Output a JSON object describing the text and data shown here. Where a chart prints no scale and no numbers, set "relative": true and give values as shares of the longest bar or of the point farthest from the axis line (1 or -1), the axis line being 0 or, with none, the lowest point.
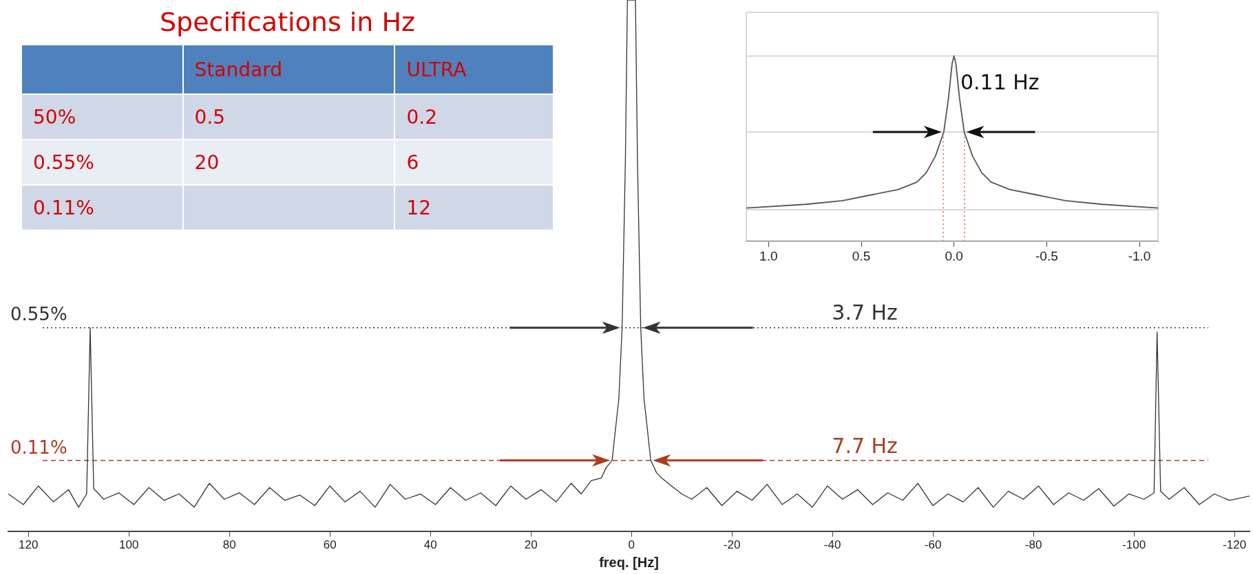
{
  "chart_data": [
    {
      "type": "other",
      "title": "Specifications in Hz",
      "categories": [
        "Standard",
        "ULTRA"
      ],
      "y_categories": [
        "50%",
        "0.55%",
        "0.11%"
      ],
      "cell_labels": [
        [
          "0.5",
          "0.2"
        ],
        [
          "20",
          "6"
        ],
        [
          null,
          "12"
        ]
      ]
    },
    {
      "type": "line",
      "relative": true,
      "xlim": [
        1.12,
        -1.1
      ],
      "xticks": [
        {
          "value": 1,
          "label": "1.0"
        },
        0.5,
        {
          "value": 0,
          "label": "0.0"
        },
        -0.5,
        {
          "value": -1,
          "label": "-1.0"
        }
      ],
      "series": [
        {
          "color": "#555555",
          "x": [
            1.12,
            0.8,
            0.6,
            0.45,
            0.3,
            0.2,
            0.15,
            0.1,
            0.055,
            0.03,
            0.01,
            0,
            -0.01,
            -0.03,
            -0.055,
            -0.1,
            -0.15,
            -0.2,
            -0.3,
            -0.45,
            -0.6,
            -0.8,
            -1.1
          ],
          "values": [
            0.18,
            0.2,
            0.22,
            0.25,
            0.28,
            0.32,
            0.37,
            0.46,
            0.59,
            0.77,
            0.96,
            1,
            0.96,
            0.77,
            0.59,
            0.46,
            0.37,
            0.32,
            0.28,
            0.25,
            0.22,
            0.2,
            0.18
          ]
        }
      ],
      "ref_lines": [
        {
          "axis": "y",
          "value": 1,
          "color": "#cccccc"
        },
        {
          "axis": "y",
          "value": 0.59,
          "color": "#cccccc"
        },
        {
          "axis": "y",
          "value": 0.17,
          "color": "#cccccc"
        },
        {
          "axis": "x",
          "value": 0.057,
          "color": "#d9603b",
          "line_style": "dotted"
        },
        {
          "axis": "x",
          "value": -0.057,
          "color": "#d9603b",
          "line_style": "dotted"
        }
      ],
      "annotations": [
        "0.11 Hz"
      ]
    },
    {
      "type": "line",
      "relative": true,
      "xlim": [
        124,
        -123
      ],
      "xticks": [
        120,
        100,
        80,
        60,
        40,
        20,
        0,
        -20,
        -40,
        -60,
        -80,
        -100,
        -120
      ],
      "xlabel": "freq. [Hz]",
      "series": [
        {
          "color": "#333333",
          "x": [
            124,
            121,
            118,
            115,
            112,
            110,
            108.4,
            107.7,
            107,
            105,
            102,
            99,
            96,
            93,
            90,
            87,
            84,
            81,
            78,
            75,
            72,
            69,
            66,
            63,
            60,
            57,
            54,
            51,
            48,
            45,
            42,
            39,
            36,
            33,
            30,
            27,
            24,
            21,
            18,
            15,
            12,
            10,
            8,
            6,
            5,
            3.85,
            2.5,
            1.85,
            1.2,
            0.8,
            0,
            -0.8,
            -1.2,
            -1.85,
            -2.5,
            -3.85,
            -5,
            -6,
            -8,
            -10,
            -12,
            -15,
            -18,
            -21,
            -24,
            -27,
            -30,
            -33,
            -36,
            -39,
            -42,
            -45,
            -48,
            -51,
            -54,
            -57,
            -60,
            -63,
            -66,
            -69,
            -72,
            -75,
            -78,
            -81,
            -84,
            -87,
            -90,
            -93,
            -96,
            -99,
            -102,
            -104,
            -104.6,
            -105.3,
            -107,
            -110,
            -113,
            -116,
            -119,
            -123
          ],
          "values": [
            0.07,
            0.05,
            0.085,
            0.055,
            0.078,
            0.045,
            0.07,
            0.383,
            0.08,
            0.06,
            0.072,
            0.05,
            0.082,
            0.058,
            0.07,
            0.045,
            0.09,
            0.06,
            0.072,
            0.05,
            0.082,
            0.058,
            0.068,
            0.048,
            0.085,
            0.055,
            0.075,
            0.045,
            0.088,
            0.06,
            0.07,
            0.05,
            0.082,
            0.058,
            0.072,
            0.048,
            0.085,
            0.06,
            0.078,
            0.055,
            0.09,
            0.07,
            0.095,
            0.1,
            0.12,
            0.133,
            0.25,
            0.383,
            0.7,
            1,
            1,
            1,
            0.7,
            0.383,
            0.25,
            0.133,
            0.11,
            0.1,
            0.085,
            0.07,
            0.06,
            0.082,
            0.048,
            0.075,
            0.058,
            0.088,
            0.05,
            0.07,
            0.045,
            0.085,
            0.06,
            0.078,
            0.05,
            0.072,
            0.058,
            0.09,
            0.048,
            0.07,
            0.055,
            0.082,
            0.045,
            0.075,
            0.06,
            0.085,
            0.05,
            0.072,
            0.058,
            0.08,
            0.047,
            0.07,
            0.06,
            0.072,
            0.375,
            0.075,
            0.06,
            0.082,
            0.05,
            0.07,
            0.058,
            0.066
          ]
        }
      ],
      "ref_lines": [
        {
          "axis": "y",
          "value": 0.383,
          "color": "#333333",
          "line_style": "dotted"
        },
        {
          "axis": "y",
          "value": 0.133,
          "color": "#b03a20",
          "line_style": "dashed"
        }
      ],
      "annotations": [
        "0.55%",
        "3.7 Hz",
        "0.11%",
        "7.7 Hz"
      ]
    }
  ]
}
